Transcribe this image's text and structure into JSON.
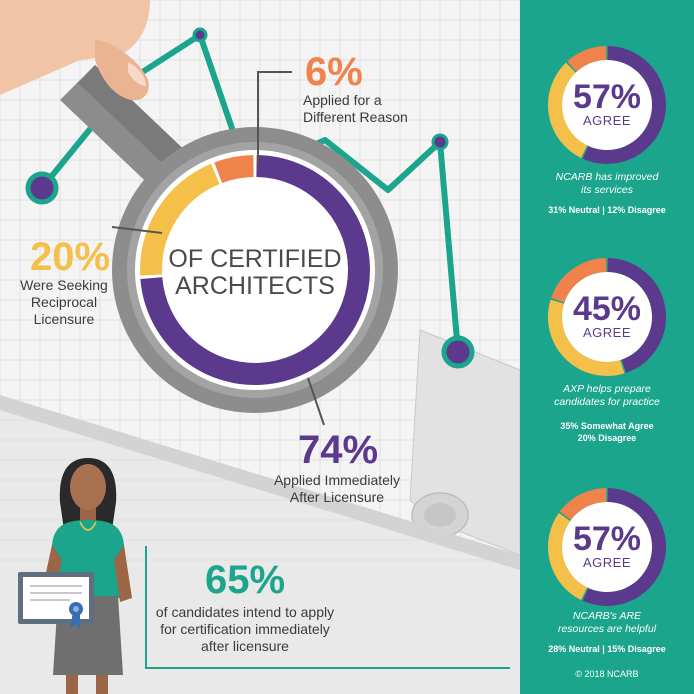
{
  "colors": {
    "teal": "#1ba58c",
    "purple": "#5b3a8e",
    "yellow": "#f5c04a",
    "orange": "#f0834c",
    "gray": "#8a8a8a",
    "paper": "#f4f4f4",
    "background": "#e9e9e9"
  },
  "icons": [
    "hand-icon",
    "magnifying-glass-icon",
    "woman-icon",
    "certificate-icon",
    "ribbon-icon",
    "graph-paper-icon"
  ],
  "chart_data": [
    {
      "type": "pie",
      "title": "OF CERTIFIED ARCHITECTS",
      "slices": [
        {
          "label": "Applied Immediately After Licensure",
          "pct_label": "74%",
          "value": 74,
          "color": "#5b3a8e"
        },
        {
          "label": "Were Seeking Reciprocal Licensure",
          "pct_label": "20%",
          "value": 20,
          "color": "#f5c04a"
        },
        {
          "label": "Applied for a Different Reason",
          "pct_label": "6%",
          "value": 6,
          "color": "#f0834c"
        }
      ]
    },
    {
      "type": "pie",
      "center_value": "57%",
      "center_label": "AGREE",
      "caption": "NCARB has improved its services",
      "sub": "31% Neutral | 12% Disagree",
      "slices": [
        {
          "label": "Agree",
          "value": 57,
          "color": "#5b3a8e"
        },
        {
          "label": "Neutral",
          "value": 31,
          "color": "#f5c04a"
        },
        {
          "label": "Disagree",
          "value": 12,
          "color": "#f0834c"
        }
      ]
    },
    {
      "type": "pie",
      "center_value": "45%",
      "center_label": "AGREE",
      "caption": "AXP helps prepare candidates for practice",
      "sub1": "35% Somewhat Agree",
      "sub2": "20% Disagree",
      "slices": [
        {
          "label": "Agree",
          "value": 45,
          "color": "#5b3a8e"
        },
        {
          "label": "Somewhat Agree",
          "value": 35,
          "color": "#f5c04a"
        },
        {
          "label": "Disagree",
          "value": 20,
          "color": "#f0834c"
        }
      ]
    },
    {
      "type": "pie",
      "center_value": "57%",
      "center_label": "AGREE",
      "caption": "NCARB's ARE resources are helpful",
      "sub": "28% Neutral | 15% Disagree",
      "slices": [
        {
          "label": "Agree",
          "value": 57,
          "color": "#5b3a8e"
        },
        {
          "label": "Neutral",
          "value": 28,
          "color": "#f5c04a"
        },
        {
          "label": "Disagree",
          "value": 15,
          "color": "#f0834c"
        }
      ]
    }
  ],
  "main": {
    "center_line1": "OF CERTIFIED",
    "center_line2": "ARCHITECTS",
    "orange_pct": "6%",
    "orange_line1": "Applied for a",
    "orange_line2": "Different Reason",
    "yellow_pct": "20%",
    "yellow_line1": "Were Seeking",
    "yellow_line2": "Reciprocal",
    "yellow_line3": "Licensure",
    "purple_pct": "74%",
    "purple_line1": "Applied Immediately",
    "purple_line2": "After Licensure"
  },
  "callout": {
    "pct": "65%",
    "line1": "of candidates intend to apply",
    "line2": "for certification immediately",
    "line3": "after licensure"
  },
  "panel": {
    "caption1_line1": "NCARB has improved",
    "caption1_line2": "its services",
    "caption2_line1": "AXP helps prepare",
    "caption2_line2": "candidates for practice",
    "caption3_line1": "NCARB's ARE",
    "caption3_line2": "resources are helpful",
    "copyright": "© 2018 NCARB"
  }
}
